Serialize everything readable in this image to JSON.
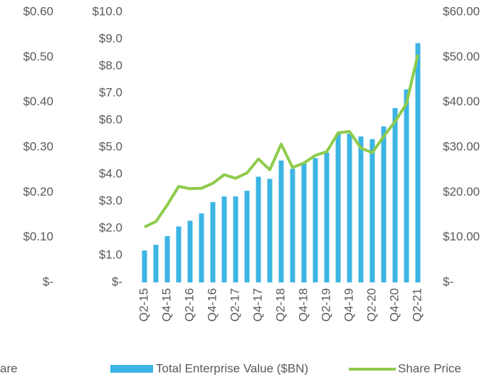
{
  "chart_data": {
    "type": "bar",
    "categories": [
      "Q2-15",
      null,
      "Q4-15",
      null,
      "Q2-16",
      null,
      "Q4-16",
      null,
      "Q2-17",
      null,
      "Q4-17",
      null,
      "Q2-18",
      null,
      "Q4-18",
      null,
      "Q2-19",
      null,
      "Q4-19",
      null,
      "Q2-20",
      null,
      "Q4-20",
      null,
      "Q2-21"
    ],
    "series": [
      {
        "name": "are"
      },
      {
        "name": "Total Enterprise Value ($BN)",
        "type": "bar",
        "color": "#3cb4e4",
        "axis": "y",
        "values": [
          1.18,
          1.39,
          1.71,
          2.07,
          2.28,
          2.55,
          2.97,
          3.18,
          3.18,
          3.39,
          3.91,
          3.83,
          4.51,
          4.2,
          4.4,
          4.6,
          4.8,
          5.5,
          5.5,
          5.4,
          5.3,
          5.77,
          6.45,
          7.14,
          8.85
        ]
      },
      {
        "name": "Share Price",
        "type": "line",
        "color": "#8dcb4a",
        "axis": "y2",
        "values": [
          12.3,
          13.5,
          17.2,
          21.3,
          20.8,
          20.9,
          22.0,
          23.9,
          23.1,
          24.3,
          27.4,
          25.0,
          30.7,
          25.5,
          26.5,
          28.2,
          29.0,
          33.2,
          33.5,
          29.8,
          28.8,
          32.4,
          35.7,
          39.7,
          50.6
        ]
      }
    ],
    "y3lim": [
      0,
      0.6
    ],
    "y3ticks": [
      {
        "value": 0,
        "label": "$-"
      },
      {
        "value": 0.1,
        "label": "$0.10"
      },
      {
        "value": 0.2,
        "label": "$0.20"
      },
      {
        "value": 0.3,
        "label": "$0.30"
      },
      {
        "value": 0.4,
        "label": "$0.40"
      },
      {
        "value": 0.5,
        "label": "$0.50"
      },
      {
        "value": 0.6,
        "label": "$0.60"
      }
    ],
    "ylim": [
      0,
      10
    ],
    "yticks": [
      {
        "value": 0,
        "label": "$-"
      },
      {
        "value": 1,
        "label": "$1.0"
      },
      {
        "value": 2,
        "label": "$2.0"
      },
      {
        "value": 3,
        "label": "$3.0"
      },
      {
        "value": 4,
        "label": "$4.0"
      },
      {
        "value": 5,
        "label": "$5.0"
      },
      {
        "value": 6,
        "label": "$6.0"
      },
      {
        "value": 7,
        "label": "$7.0"
      },
      {
        "value": 8,
        "label": "$8.0"
      },
      {
        "value": 9,
        "label": "$9.0"
      },
      {
        "value": 10,
        "label": "$10.0"
      }
    ],
    "y2lim": [
      0,
      60
    ],
    "y2ticks": [
      {
        "value": 0,
        "label": "$-"
      },
      {
        "value": 10,
        "label": "$10.00"
      },
      {
        "value": 20,
        "label": "$20.00"
      },
      {
        "value": 30,
        "label": "$30.00"
      },
      {
        "value": 40,
        "label": "$40.00"
      },
      {
        "value": 50,
        "label": "$50.00"
      },
      {
        "value": 60,
        "label": "$60.00"
      }
    ]
  }
}
